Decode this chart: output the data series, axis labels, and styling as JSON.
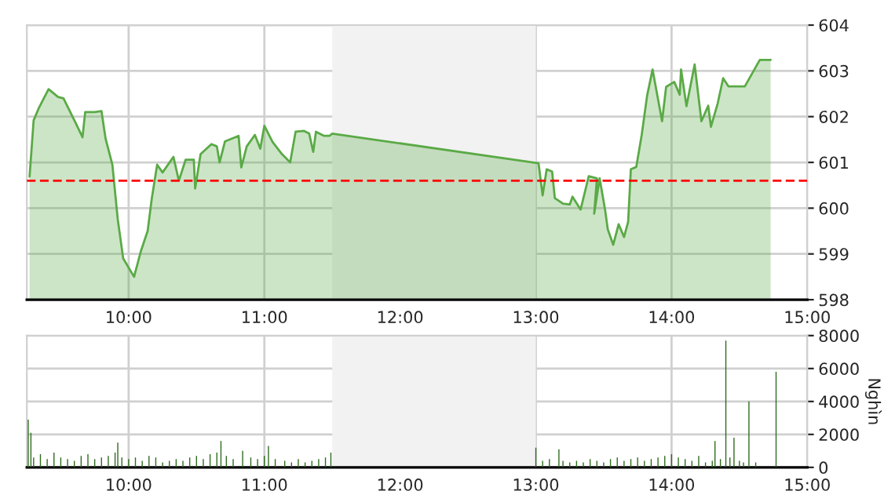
{
  "chart_data": [
    {
      "type": "area",
      "color": "#5aaa46",
      "x": [
        9.27,
        9.3,
        9.34,
        9.41,
        9.48,
        9.52,
        9.61,
        9.66,
        9.68,
        9.75,
        9.8,
        9.83,
        9.88,
        9.92,
        9.96,
        10.04,
        10.09,
        10.14,
        10.17,
        10.21,
        10.25,
        10.33,
        10.37,
        10.42,
        10.48,
        10.49,
        10.53,
        10.61,
        10.65,
        10.67,
        10.71,
        10.81,
        10.83,
        10.87,
        10.93,
        10.97,
        11.0,
        11.06,
        11.13,
        11.19,
        11.23,
        11.29,
        11.33,
        11.36,
        11.38,
        11.44,
        11.48,
        11.5,
        13.02,
        13.05,
        13.08,
        13.12,
        13.14,
        13.2,
        13.25,
        13.27,
        13.33,
        13.39,
        13.45,
        13.43,
        13.47,
        13.51,
        13.53,
        13.57,
        13.61,
        13.65,
        13.68,
        13.7,
        13.74,
        13.78,
        13.82,
        13.86,
        13.93,
        13.96,
        14.02,
        14.06,
        14.07,
        14.11,
        14.17,
        14.22,
        14.27,
        14.29,
        14.34,
        14.38,
        14.42,
        14.54,
        14.65,
        14.73
      ],
      "values": [
        600.69,
        601.92,
        602.2,
        602.6,
        602.43,
        602.4,
        601.86,
        601.55,
        602.1,
        602.1,
        602.12,
        601.52,
        600.95,
        599.75,
        598.9,
        598.5,
        599.06,
        599.5,
        600.2,
        600.95,
        600.78,
        601.12,
        600.6,
        601.06,
        601.06,
        600.43,
        601.18,
        601.4,
        601.35,
        601.0,
        601.46,
        601.58,
        600.89,
        601.35,
        601.6,
        601.3,
        601.8,
        601.45,
        601.18,
        601.0,
        601.67,
        601.69,
        601.63,
        601.23,
        601.67,
        601.58,
        601.58,
        601.63,
        600.98,
        600.28,
        600.85,
        600.8,
        600.22,
        600.1,
        600.08,
        600.25,
        599.97,
        600.7,
        600.65,
        599.88,
        600.65,
        599.97,
        599.54,
        599.2,
        599.65,
        599.37,
        599.7,
        600.85,
        600.9,
        601.6,
        602.46,
        603.03,
        601.9,
        602.65,
        602.76,
        602.48,
        603.03,
        602.23,
        603.14,
        601.9,
        602.24,
        601.78,
        602.29,
        602.84,
        602.66,
        602.66,
        603.24,
        603.24
      ],
      "xlim": [
        9.25,
        15
      ],
      "xticks": [
        {
          "value": 10,
          "label": "10:00"
        },
        {
          "value": 11,
          "label": "11:00"
        },
        {
          "value": 12,
          "label": "12:00"
        },
        {
          "value": 13,
          "label": "13:00"
        },
        {
          "value": 14,
          "label": "14:00"
        },
        {
          "value": 15,
          "label": "15:00"
        }
      ],
      "ylim": [
        598,
        604
      ],
      "yticks": [
        598,
        599,
        600,
        601,
        602,
        603,
        604
      ],
      "ref_lines": [
        {
          "axis": "y",
          "value": 600.6,
          "color": "#ff0000",
          "line_style": "dashed"
        }
      ],
      "bands": [
        {
          "axis": "x",
          "from": 11.5,
          "to": 13,
          "color": "#f2f2f2"
        }
      ],
      "grid": true
    },
    {
      "type": "bar",
      "color": "#2e6b1e",
      "ylabel": "Nghìn",
      "x": [
        9.26,
        9.28,
        9.3,
        9.35,
        9.4,
        9.45,
        9.5,
        9.55,
        9.6,
        9.65,
        9.7,
        9.75,
        9.8,
        9.85,
        9.9,
        9.92,
        9.95,
        10.0,
        10.05,
        10.1,
        10.15,
        10.2,
        10.25,
        10.3,
        10.35,
        10.4,
        10.45,
        10.5,
        10.55,
        10.6,
        10.65,
        10.68,
        10.72,
        10.77,
        10.84,
        10.9,
        10.95,
        11.0,
        11.03,
        11.08,
        11.15,
        11.2,
        11.25,
        11.3,
        11.35,
        11.4,
        11.45,
        11.49,
        13.0,
        13.05,
        13.1,
        13.17,
        13.2,
        13.25,
        13.3,
        13.35,
        13.4,
        13.45,
        13.5,
        13.55,
        13.6,
        13.65,
        13.7,
        13.75,
        13.8,
        13.85,
        13.9,
        13.95,
        14.0,
        14.05,
        14.1,
        14.15,
        14.2,
        14.25,
        14.3,
        14.32,
        14.36,
        14.4,
        14.43,
        14.46,
        14.5,
        14.53,
        14.57,
        14.62,
        14.77
      ],
      "values": [
        2900,
        2100,
        600,
        800,
        500,
        900,
        600,
        500,
        400,
        700,
        800,
        500,
        600,
        700,
        900,
        1500,
        600,
        500,
        600,
        400,
        700,
        600,
        300,
        400,
        500,
        400,
        600,
        700,
        500,
        800,
        900,
        1600,
        700,
        500,
        1000,
        600,
        500,
        700,
        1300,
        500,
        400,
        300,
        500,
        300,
        400,
        500,
        600,
        900,
        1200,
        400,
        500,
        1100,
        400,
        300,
        400,
        300,
        500,
        400,
        300,
        500,
        600,
        400,
        500,
        600,
        400,
        500,
        600,
        700,
        800,
        600,
        500,
        400,
        700,
        300,
        400,
        1600,
        500,
        7700,
        600,
        1800,
        400,
        300,
        4000,
        300,
        5800
      ],
      "xlim": [
        9.25,
        15
      ],
      "xticks": [
        {
          "value": 10,
          "label": "10:00"
        },
        {
          "value": 11,
          "label": "11:00"
        },
        {
          "value": 12,
          "label": "12:00"
        },
        {
          "value": 13,
          "label": "13:00"
        },
        {
          "value": 14,
          "label": "14:00"
        },
        {
          "value": 15,
          "label": "15:00"
        }
      ],
      "ylim": [
        0,
        8000
      ],
      "yticks": [
        0,
        2000,
        4000,
        6000,
        8000
      ],
      "bands": [
        {
          "axis": "x",
          "from": 11.5,
          "to": 13,
          "color": "#f2f2f2"
        }
      ],
      "grid": true
    }
  ]
}
